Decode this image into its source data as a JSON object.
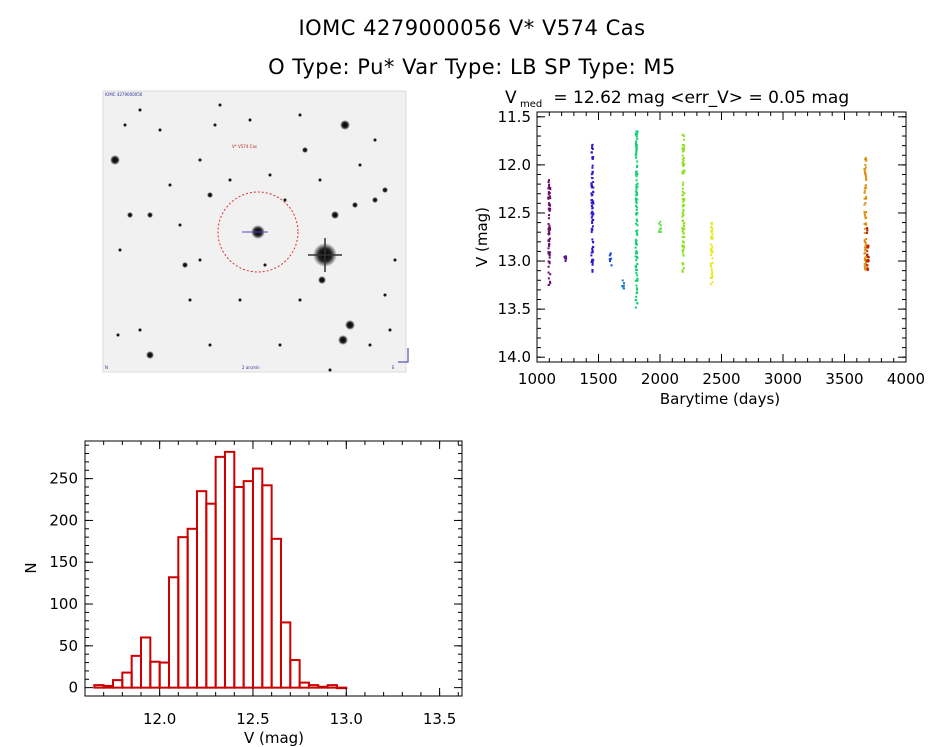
{
  "header": {
    "line1": "IOMC 4279000056    V* V574 Cas",
    "line2": "O Type: Pu*   Var Type: LB   SP Type: M5"
  },
  "finder_image": {
    "label_top_left": "IOMC 4279000056",
    "label_target": "V* V574 Cas",
    "label_bottom_center": "2 arcmin",
    "label_bottom_left": "N",
    "label_bottom_right": "E"
  },
  "chart_data": [
    {
      "type": "scatter",
      "title_main": "V",
      "title_sub": "med",
      "title_rest": " = 12.62 mag <err_V> = 0.05 mag",
      "xlabel": "Barytime (days)",
      "ylabel": "V (mag)",
      "xlim": [
        1000,
        4000
      ],
      "ylim": [
        14.05,
        11.45
      ],
      "xticks": [
        1000,
        1500,
        2000,
        2500,
        3000,
        3500,
        4000
      ],
      "yticks": [
        11.5,
        12.0,
        12.5,
        13.0,
        13.5,
        14.0
      ],
      "ytick_labels": [
        "11.5",
        "12.0",
        "12.5",
        "13.0",
        "13.5",
        "14.0"
      ],
      "series": [
        {
          "name": "clump-1100",
          "x": 1100,
          "ymin": 12.15,
          "ymax": 13.3,
          "color": "#6a0d6a"
        },
        {
          "name": "clump-1230",
          "x": 1230,
          "ymin": 12.95,
          "ymax": 13.02,
          "color": "#5a1a8c"
        },
        {
          "name": "clump-1450",
          "x": 1450,
          "ymin": 11.75,
          "ymax": 13.15,
          "color": "#2a1acc"
        },
        {
          "name": "clump-1600",
          "x": 1600,
          "ymin": 12.92,
          "ymax": 13.05,
          "color": "#1a4ad6"
        },
        {
          "name": "clump-1700",
          "x": 1700,
          "ymin": 13.2,
          "ymax": 13.3,
          "color": "#1a80c8"
        },
        {
          "name": "clump-1810",
          "x": 1810,
          "ymin": 11.65,
          "ymax": 13.5,
          "color": "#10d070"
        },
        {
          "name": "clump-2000",
          "x": 2000,
          "ymin": 12.58,
          "ymax": 12.7,
          "color": "#60e050"
        },
        {
          "name": "clump-2190",
          "x": 2190,
          "ymin": 11.65,
          "ymax": 13.15,
          "color": "#90e020"
        },
        {
          "name": "clump-2420",
          "x": 2420,
          "ymin": 12.6,
          "ymax": 13.25,
          "color": "#e8e820"
        },
        {
          "name": "clump-3670",
          "x": 3670,
          "ymin": 11.92,
          "ymax": 13.1,
          "color": "#e09010"
        },
        {
          "name": "clump-3690",
          "x": 3690,
          "ymin": 12.62,
          "ymax": 13.1,
          "color": "#c02000"
        }
      ]
    },
    {
      "type": "bar",
      "xlabel": "V (mag)",
      "ylabel": "N",
      "xlim": [
        11.6,
        13.62
      ],
      "ylim": [
        -10,
        295
      ],
      "xticks": [
        12.0,
        12.5,
        13.0,
        13.5
      ],
      "xtick_labels": [
        "12.0",
        "12.5",
        "13.0",
        "13.5"
      ],
      "yticks": [
        0,
        50,
        100,
        150,
        200,
        250
      ],
      "ytick_labels": [
        "0",
        "50",
        "100",
        "150",
        "200",
        "250"
      ],
      "bin_start": 11.65,
      "bin_width": 0.05,
      "values": [
        3,
        2,
        9,
        18,
        38,
        60,
        31,
        30,
        132,
        180,
        190,
        235,
        220,
        276,
        282,
        240,
        247,
        262,
        242,
        178,
        78,
        33,
        6,
        3,
        1,
        3,
        0
      ],
      "color": "#cc0000"
    }
  ]
}
